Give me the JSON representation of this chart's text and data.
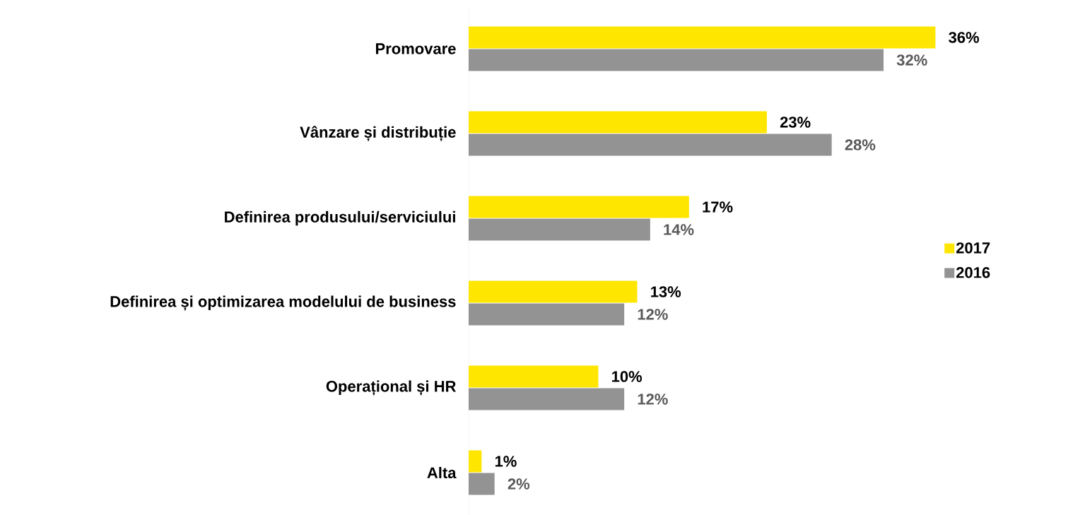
{
  "chart_data": {
    "type": "bar",
    "orientation": "horizontal",
    "legend": "right",
    "categories": [
      "Promovare",
      "Vânzare și distribuție",
      "Definirea produsului/serviciului",
      "Definirea și optimizarea modelului de business",
      "Operațional și HR",
      "Alta"
    ],
    "series": [
      {
        "name": "2017",
        "color": "#ffe600",
        "values": [
          36,
          23,
          17,
          13,
          10,
          1
        ],
        "value_labels": [
          "36%",
          "23%",
          "17%",
          "13%",
          "10%",
          "1%"
        ]
      },
      {
        "name": "2016",
        "color": "#939393",
        "values": [
          32,
          28,
          14,
          12,
          12,
          2
        ],
        "value_labels": [
          "32%",
          "28%",
          "14%",
          "12%",
          "12%",
          "2%"
        ]
      }
    ]
  }
}
